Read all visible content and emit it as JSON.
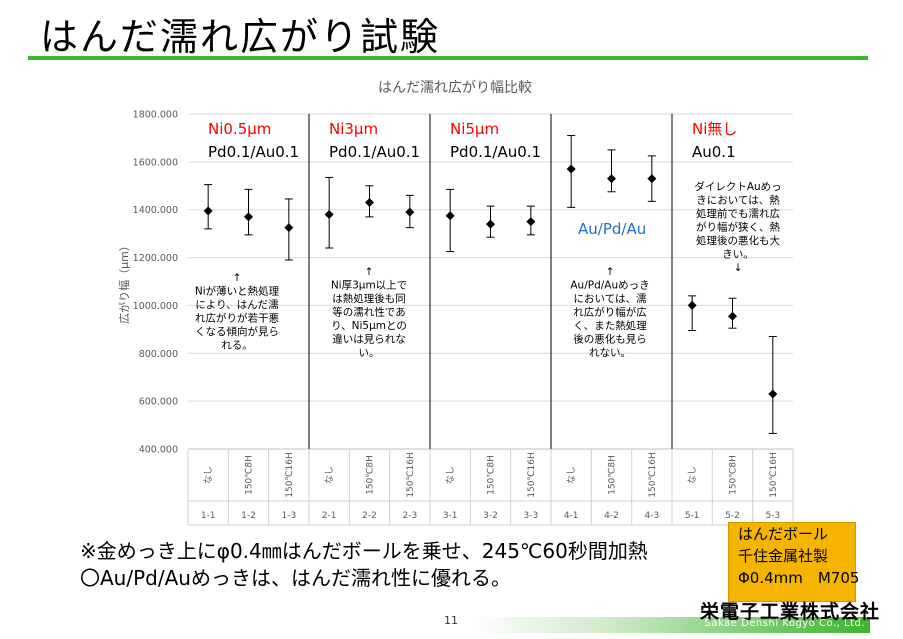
{
  "slide": {
    "title": "はんだ濡れ広がり試験",
    "note_line1": "※金めっき上にφ0.4㎜はんだボールを乗せ、245℃60秒間加熱",
    "note_line2": "〇Au/Pd/Auめっきは、はんだ濡れ性に優れる。",
    "legend_lines": [
      "はんだボール",
      "千住金属社製",
      "Φ0.4mm　M705"
    ],
    "company_jp": "栄電子工業株式会社",
    "company_en": "Sakae Denshi Kogyo Co., Ltd.",
    "page_number": "11",
    "accent_color": "#3cb52f",
    "legend_color": "#f5b400"
  },
  "chart_data": {
    "type": "scatter",
    "title": "はんだ濡れ広がり幅比較",
    "ylabel": "広がり幅（μm）",
    "ylim": [
      400,
      1800
    ],
    "yticks": [
      "400.000",
      "600.000",
      "800.000",
      "1000.000",
      "1200.000",
      "1400.000",
      "1600.000",
      "1800.000"
    ],
    "grid": true,
    "categories": [
      {
        "code": "1-1",
        "treatment": "なし"
      },
      {
        "code": "1-2",
        "treatment": "150℃8H"
      },
      {
        "code": "1-3",
        "treatment": "150℃16H"
      },
      {
        "code": "2-1",
        "treatment": "なし"
      },
      {
        "code": "2-2",
        "treatment": "150℃8H"
      },
      {
        "code": "2-3",
        "treatment": "150℃16H"
      },
      {
        "code": "3-1",
        "treatment": "なし"
      },
      {
        "code": "3-2",
        "treatment": "150℃8H"
      },
      {
        "code": "3-3",
        "treatment": "150℃16H"
      },
      {
        "code": "4-1",
        "treatment": "なし"
      },
      {
        "code": "4-2",
        "treatment": "150℃8H"
      },
      {
        "code": "4-3",
        "treatment": "150℃16H"
      },
      {
        "code": "5-1",
        "treatment": "なし"
      },
      {
        "code": "5-2",
        "treatment": "150℃8H"
      },
      {
        "code": "5-3",
        "treatment": "150℃16H"
      }
    ],
    "points": [
      {
        "mean": 1395,
        "min": 1320,
        "max": 1505
      },
      {
        "mean": 1370,
        "min": 1295,
        "max": 1485
      },
      {
        "mean": 1325,
        "min": 1190,
        "max": 1445
      },
      {
        "mean": 1380,
        "min": 1240,
        "max": 1535
      },
      {
        "mean": 1430,
        "min": 1370,
        "max": 1500
      },
      {
        "mean": 1390,
        "min": 1325,
        "max": 1460
      },
      {
        "mean": 1375,
        "min": 1225,
        "max": 1485
      },
      {
        "mean": 1340,
        "min": 1285,
        "max": 1415
      },
      {
        "mean": 1350,
        "min": 1295,
        "max": 1415
      },
      {
        "mean": 1570,
        "min": 1410,
        "max": 1710
      },
      {
        "mean": 1530,
        "min": 1475,
        "max": 1650
      },
      {
        "mean": 1530,
        "min": 1435,
        "max": 1625
      },
      {
        "mean": 1000,
        "min": 895,
        "max": 1040
      },
      {
        "mean": 955,
        "min": 905,
        "max": 1030
      },
      {
        "mean": 630,
        "min": 465,
        "max": 870
      }
    ],
    "groups": [
      {
        "label_red": "Ni0.5μm",
        "label_black": "Pd0.1/Au0.1",
        "annotation": [
          "↑",
          "Niが薄いと熱処理",
          "により、はんだ濡",
          "れ広がりが若干悪",
          "くなる傾向が見ら",
          "れる。"
        ]
      },
      {
        "label_red": "Ni3μm",
        "label_black": "Pd0.1/Au0.1",
        "annotation": [
          "↑",
          "Ni厚3μm以上で",
          "は熱処理後も同",
          "等の濡れ性であ",
          "り、Ni5μmとの",
          "違いは見られな",
          "い。"
        ]
      },
      {
        "label_red": "Ni5μm",
        "label_black": "Pd0.1/Au0.1",
        "annotation": []
      },
      {
        "label_blue": "Au/Pd/Au",
        "annotation": [
          "↑",
          "Au/Pd/Auめっき",
          "においては、濡",
          "れ広がり幅が広",
          "く、また熱処理",
          "後の悪化も見ら",
          "れない。"
        ]
      },
      {
        "label_red": "Ni無し",
        "label_black": "Au0.1",
        "annotation": [
          "ダイレクトAuめっ",
          "きにおいては、熱",
          "処理前でも濡れ広",
          "がり幅が狭く、熱",
          "処理後の悪化も大",
          "きい。",
          "↓"
        ]
      }
    ]
  }
}
